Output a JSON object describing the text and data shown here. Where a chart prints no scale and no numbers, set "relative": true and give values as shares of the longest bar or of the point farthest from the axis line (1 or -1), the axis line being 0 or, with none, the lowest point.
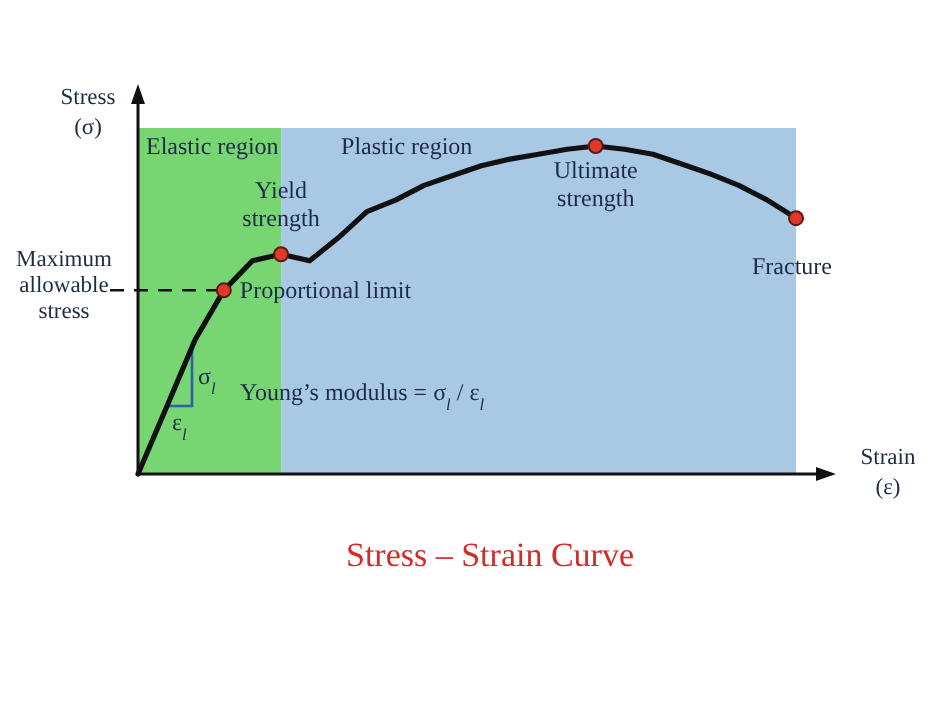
{
  "chart_data": {
    "type": "line",
    "title": "Stress – Strain Curve",
    "xlabel": "Strain (ε)",
    "ylabel": "Stress (σ)",
    "relative": true,
    "categories": [
      null,
      null,
      null,
      null,
      null,
      null,
      null,
      null,
      null,
      null,
      null,
      null,
      null,
      null,
      null,
      null,
      null,
      null,
      null,
      null,
      null,
      null,
      null,
      null
    ],
    "series": [
      {
        "color": "#111111",
        "values": [
          0,
          0.204,
          0.41,
          0.56,
          0.65,
          0.67,
          0.65,
          0.72,
          0.8,
          0.835,
          0.88,
          0.91,
          0.94,
          0.96,
          0.975,
          0.99,
          1.0,
          0.99,
          0.975,
          0.945,
          0.915,
          0.88,
          0.835,
          0.78
        ]
      }
    ],
    "ref_lines": [
      {
        "axis": "y",
        "value": 0.56,
        "label": "Maximum allowable stress",
        "line_style": "dashed"
      }
    ],
    "annotations": [
      "Elastic region",
      "Plastic region",
      "Proportional limit",
      {
        "text": "Yield strength",
        "y": 0.67
      },
      {
        "text": "Ultimate strength",
        "y": 1.0
      },
      {
        "text": "Fracture",
        "y": 0.78
      },
      "Young’s modulus = σ$_{l}$ / ε$_{l}$",
      "σ$_{l}$",
      "ε$_{l}$"
    ]
  }
}
